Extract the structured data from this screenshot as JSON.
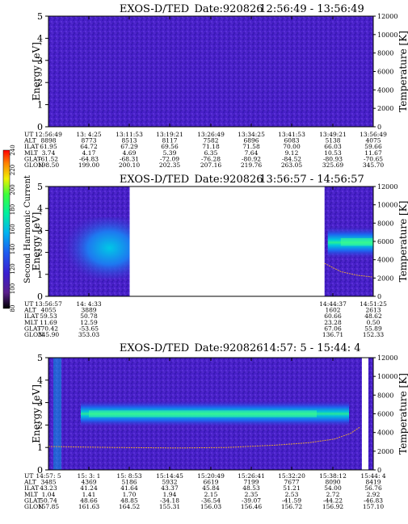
{
  "chart_data": [
    {
      "type": "heatmap",
      "title_instrument": "EXOS-D/TED",
      "title_date": "Date:920826",
      "title_range": "12:56:49 - 13:56:49",
      "ylabel": "Energy [eV]",
      "y2label": "Temperature [K]",
      "yticks": [
        "0",
        "1",
        "2",
        "3",
        "4",
        "5"
      ],
      "y2ticks": [
        "0",
        "2000",
        "4000",
        "6000",
        "8000",
        "10000",
        "12000"
      ],
      "ylim": [
        0,
        5
      ],
      "y2lim": [
        0,
        12000
      ],
      "data_gaps": [],
      "emission_band": "none",
      "temperature_trace": [],
      "row_labels": [
        "UT",
        "ALT",
        "ILAT",
        "MLT",
        "GLAT",
        "GLON"
      ],
      "columns": [
        [
          "12:56:49",
          "8898",
          "61.95",
          "3.74",
          "-61.52",
          "198.50"
        ],
        [
          "13: 4:25",
          "8773",
          "64.72",
          "4.17",
          "-64.83",
          "199.00"
        ],
        [
          "13:11:53",
          "8513",
          "67.29",
          "4.69",
          "-68.31",
          "200.10"
        ],
        [
          "13:19:21",
          "8117",
          "69.56",
          "5.39",
          "-72.09",
          "202.35"
        ],
        [
          "13:26:49",
          "7582",
          "71.18",
          "6.35",
          "-76.28",
          "207.16"
        ],
        [
          "13:34:25",
          "6896",
          "71.58",
          "7.64",
          "-80.92",
          "219.76"
        ],
        [
          "13:41:53",
          "6083",
          "70.00",
          "9.12",
          "-84.52",
          "263.05"
        ],
        [
          "13:49:21",
          "5138",
          "66.03",
          "10.53",
          "-80.93",
          "325.69"
        ],
        [
          "13:56:49",
          "4075",
          "59.66",
          "11.67",
          "-70.65",
          "345.70"
        ]
      ]
    },
    {
      "type": "heatmap",
      "title_instrument": "EXOS-D/TED",
      "title_date": "Date:920826",
      "title_range": "13:56:57 - 14:56:57",
      "ylabel": "Energy [eV]",
      "y2label": "Temperature [K]",
      "yticks": [
        "0",
        "1",
        "2",
        "3",
        "4",
        "5"
      ],
      "y2ticks": [
        "0",
        "2000",
        "4000",
        "6000",
        "8000",
        "10000",
        "12000"
      ],
      "ylim": [
        0,
        5
      ],
      "y2lim": [
        0,
        12000
      ],
      "colorbar": {
        "label": "Second Harmonic Current",
        "ticks": [
          "80",
          "100",
          "120",
          "140",
          "160",
          "180",
          "200",
          "220",
          "240"
        ]
      },
      "data_gaps": [
        [
          0.25,
          0.85
        ]
      ],
      "emission_band": "partial",
      "temperature_trace": [
        [
          0.85,
          3600
        ],
        [
          0.9,
          2700
        ],
        [
          0.95,
          2300
        ],
        [
          1.0,
          2100
        ]
      ],
      "row_labels": [
        "UT",
        "ALT",
        "ILAT",
        "MLT",
        "GLAT",
        "GLON"
      ],
      "columns": [
        [
          "13:56:57",
          "4055",
          "59.53",
          "11.69",
          "-70.42",
          "345.90"
        ],
        [
          "14: 4:33",
          "3889",
          "50.78",
          "12.59",
          "-53.65",
          "353.03"
        ],
        [
          "14:44:37",
          "1602",
          "60.66",
          "23.28",
          "67.06",
          "136.71"
        ],
        [
          "14:51:25",
          "2613",
          "48.62",
          "0.50",
          "55.89",
          "152.33"
        ]
      ]
    },
    {
      "type": "heatmap",
      "title_instrument": "EXOS-D/TED",
      "title_date": "Date:920826",
      "title_range": "14:57: 5 - 15:44: 4",
      "ylabel": "Energy [eV]",
      "y2label": "Temperature [K]",
      "yticks": [
        "0",
        "1",
        "2",
        "3",
        "4",
        "5"
      ],
      "y2ticks": [
        "0",
        "2000",
        "4000",
        "6000",
        "8000",
        "10000",
        "12000"
      ],
      "ylim": [
        0,
        5
      ],
      "y2lim": [
        0,
        12000
      ],
      "data_gaps": [
        [
          0.965,
          0.985
        ]
      ],
      "emission_band": "full",
      "temperature_trace": [
        [
          0.0,
          2500
        ],
        [
          0.2,
          2400
        ],
        [
          0.4,
          2350
        ],
        [
          0.55,
          2400
        ],
        [
          0.7,
          2650
        ],
        [
          0.8,
          2900
        ],
        [
          0.88,
          3300
        ],
        [
          0.93,
          3900
        ],
        [
          0.96,
          4600
        ]
      ],
      "row_labels": [
        "UT",
        "ALT",
        "ILAT",
        "MLT",
        "GLAT",
        "GLON"
      ],
      "columns": [
        [
          "14:57: 5",
          "3485",
          "43.23",
          "1.04",
          "50.74",
          "157.85"
        ],
        [
          "15: 3: 1",
          "4369",
          "41.24",
          "1.41",
          "48.66",
          "161.63"
        ],
        [
          "15: 8:53",
          "5186",
          "41.64",
          "1.70",
          "48.85",
          "164.52"
        ],
        [
          "15:14:45",
          "5932",
          "43.37",
          "1.94",
          "-34.18",
          "155.31"
        ],
        [
          "15:20:49",
          "6619",
          "45.84",
          "2.15",
          "-36.54",
          "156.03"
        ],
        [
          "15:26:41",
          "7199",
          "48.53",
          "2.35",
          "-39.07",
          "156.46"
        ],
        [
          "15:32:20",
          "7677",
          "51.21",
          "2.53",
          "-41.59",
          "156.72"
        ],
        [
          "15:38:12",
          "8090",
          "54.00",
          "2.72",
          "-44.22",
          "156.92"
        ],
        [
          "15:44: 4",
          "8419",
          "56.76",
          "2.92",
          "-46.83",
          "157.10"
        ]
      ]
    }
  ]
}
